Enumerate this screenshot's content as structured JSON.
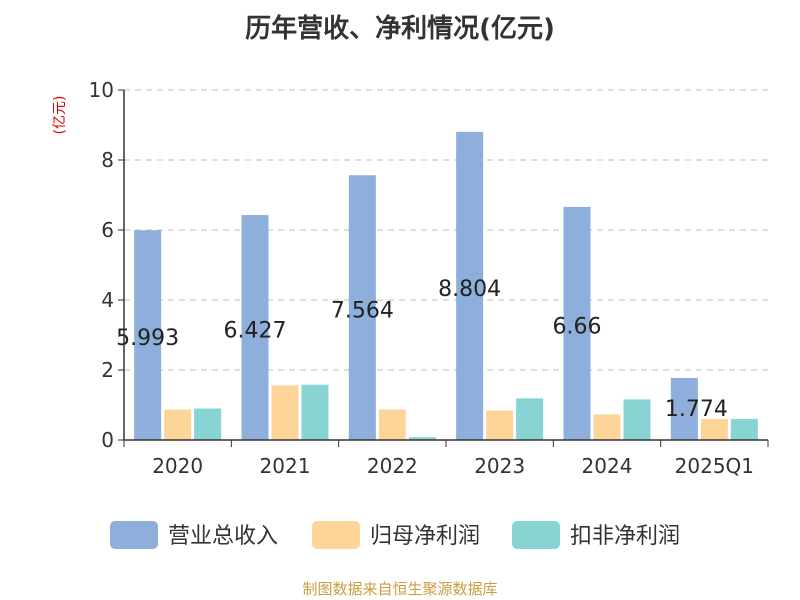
{
  "chart_data": {
    "type": "bar",
    "title": "历年营收、净利情况(亿元)",
    "unit_label": "(亿元)",
    "categories": [
      "2020",
      "2021",
      "2022",
      "2023",
      "2024",
      "2025Q1"
    ],
    "ylim": [
      0,
      10
    ],
    "yticks": [
      0,
      2,
      4,
      6,
      8,
      10
    ],
    "grid": true,
    "legend_position": "bottom",
    "series": [
      {
        "name": "营业总收入",
        "color": "#8eaedb",
        "values": [
          5.993,
          6.427,
          7.564,
          8.804,
          6.66,
          1.774
        ],
        "labels": [
          "5.993",
          "6.427",
          "7.564",
          "8.804",
          "6.66",
          "1.774"
        ]
      },
      {
        "name": "归母净利润",
        "color": "#fdd598",
        "values": [
          0.87,
          1.56,
          0.87,
          0.84,
          0.73,
          0.6
        ]
      },
      {
        "name": "扣非净利润",
        "color": "#88d4d5",
        "values": [
          0.9,
          1.58,
          0.08,
          1.19,
          1.16,
          0.6
        ]
      }
    ]
  },
  "source": "制图数据来自恒生聚源数据库"
}
